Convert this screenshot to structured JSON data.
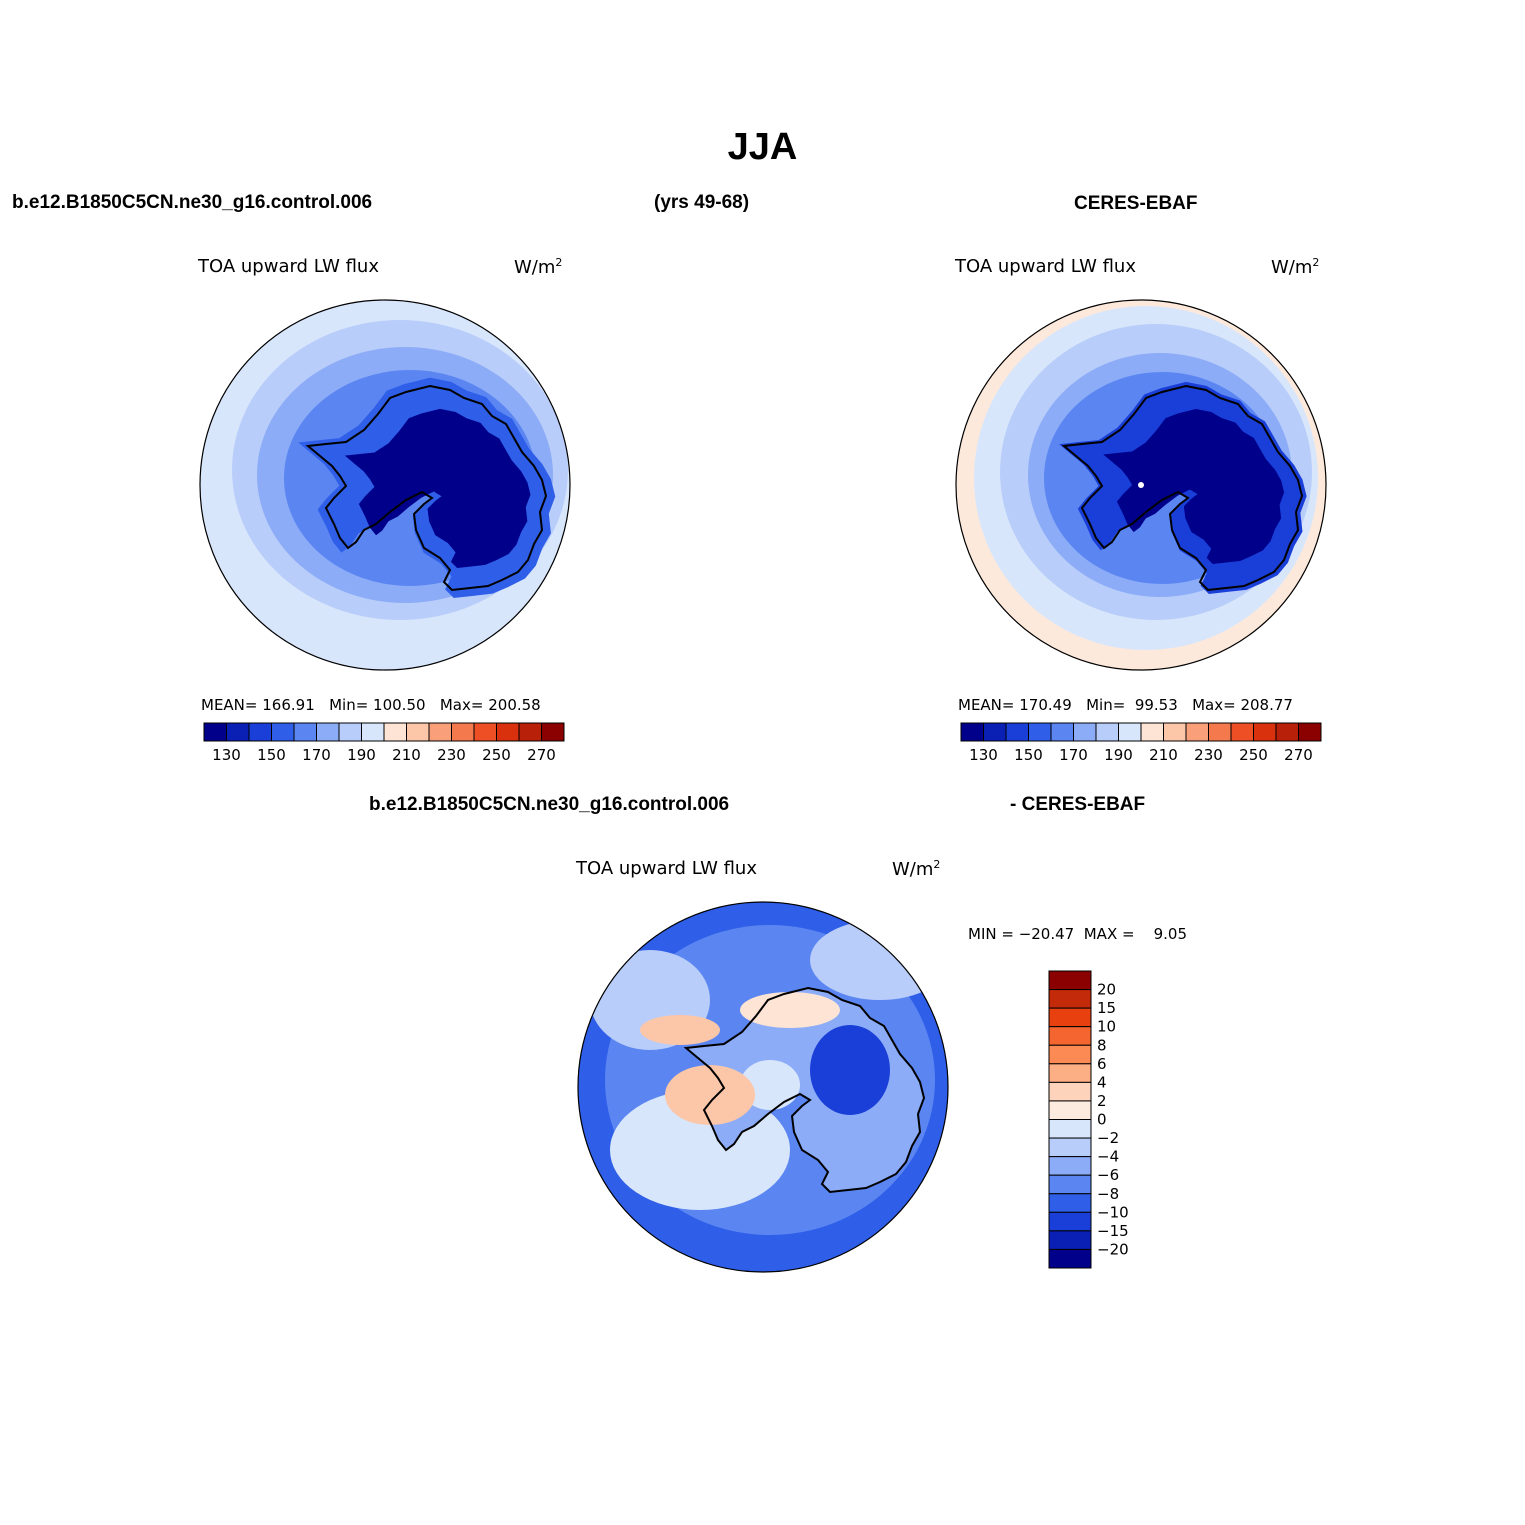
{
  "title": "JJA",
  "top_left_header": "b.e12.B1850C5CN.ne30_g16.control.006",
  "top_mid_header": "(yrs 49-68)",
  "top_right_header": "CERES-EBAF",
  "bottom_header_left": "b.e12.B1850C5CN.ne30_g16.control.006",
  "bottom_header_right": "- CERES-EBAF",
  "panels": [
    {
      "variable": "TOA upward LW flux",
      "units_base": "W/m",
      "units_exp": "2",
      "mean_label": "MEAN=",
      "mean": "166.91",
      "min_label": "Min=",
      "min": "100.50",
      "max_label": "Max=",
      "max": "200.58"
    },
    {
      "variable": "TOA upward LW flux",
      "units_base": "W/m",
      "units_exp": "2",
      "mean_label": "MEAN=",
      "mean": "170.49",
      "min_label": "Min=",
      "min": "99.53",
      "max_label": "Max=",
      "max": "208.77"
    },
    {
      "variable": "TOA upward LW flux",
      "units_base": "W/m",
      "units_exp": "2",
      "minmax_text": "MIN = −20.47  MAX =    9.05"
    }
  ],
  "colorbar_abs": {
    "tick_labels": [
      "130",
      "150",
      "170",
      "190",
      "210",
      "230",
      "250",
      "270"
    ],
    "colors": [
      "#00008b",
      "#0a1fb4",
      "#1a3fd8",
      "#2f5fe8",
      "#5b86f2",
      "#8cacf7",
      "#b9cdfa",
      "#d8e6fc",
      "#fde4d4",
      "#fcc6a8",
      "#f9a07a",
      "#f47a4e",
      "#ee4f25",
      "#d9300e",
      "#b8200a",
      "#8b0000"
    ]
  },
  "colorbar_diff": {
    "labels": [
      "20",
      "15",
      "10",
      "8",
      "6",
      "4",
      "2",
      "0",
      "−2",
      "−4",
      "−6",
      "−8",
      "−10",
      "−15",
      "−20"
    ],
    "colors": [
      "#8b0000",
      "#c22a0a",
      "#e8400f",
      "#f5652f",
      "#fb8a55",
      "#fcae85",
      "#fdd3bb",
      "#fdebe0",
      "#d8e6fc",
      "#b9cdfa",
      "#8cacf7",
      "#5b86f2",
      "#2f5fe8",
      "#1a3fd8",
      "#0a1fb4",
      "#00008b"
    ]
  },
  "map_colors": {
    "ocean_far": "#d8e6fc",
    "ocean_mid": "#b9cdfa",
    "ring_mid": "#8cacf7",
    "ring_inner": "#5b86f2",
    "coast_band": "#2f5fe8",
    "interior_mid": "#1a3fd8",
    "interior_deep": "#00008b",
    "warm_edge": "#fde9db",
    "diff_pos": "#fcc6a8",
    "diff_pos_light": "#fde4d4"
  }
}
